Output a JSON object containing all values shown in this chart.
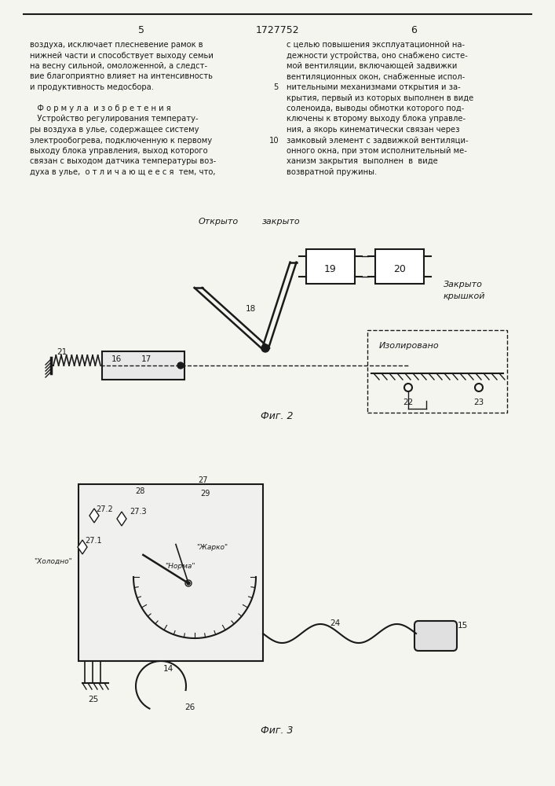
{
  "page_width": 7.07,
  "page_height": 10.0,
  "bg_color": "#f5f5f0",
  "text_color": "#1a1a1a",
  "line_color": "#1a1a1a",
  "header_page_left": "5",
  "header_title": "1727752",
  "header_page_right": "6",
  "col1_text": [
    "воздуха, исключает плесневение рамок в",
    "нижней части и способствует выходу семьи",
    "на весну сильной, омоложенной, а следст-",
    "вие благоприятно влияет на интенсивность",
    "и продуктивность медосбора.",
    "",
    "   Ф о р м у л а  и з о б р е т е н и я",
    "   Устройство регулирования температу-",
    "ры воздуха в улье, содержащее систему",
    "электрообогрева, подключенную к первому",
    "выходу блока управления, выход которого",
    "связан с выходом датчика температуры воз-",
    "духа в улье,  о т л и ч а ю щ е е с я  тем, что,"
  ],
  "col2_text_numbered": [
    [
      "",
      "с целью повышения эксплуатационной на-"
    ],
    [
      "",
      "дежности устройства, оно снабжено систе-"
    ],
    [
      "",
      "мой вентиляции, включающей задвижки"
    ],
    [
      "",
      "вентиляционных окон, снабженные испол-"
    ],
    [
      "5",
      "нительными механизмами открытия и за-"
    ],
    [
      "",
      "крытия, первый из которых выполнен в виде"
    ],
    [
      "",
      "соленоида, выводы обмотки которого под-"
    ],
    [
      "",
      "ключены к второму выходу блока управле-"
    ],
    [
      "",
      "ния, а якорь кинематически связан через"
    ],
    [
      "10",
      "замковый элемент с задвижкой вентиляци-"
    ],
    [
      "",
      "онного окна, при этом исполнительный ме-"
    ],
    [
      "",
      "ханизм закрытия  выполнен  в  виде"
    ],
    [
      "",
      "возвратной пружины."
    ]
  ],
  "fig2_caption": "Фиг. 2",
  "fig3_caption": "Фиг. 3"
}
